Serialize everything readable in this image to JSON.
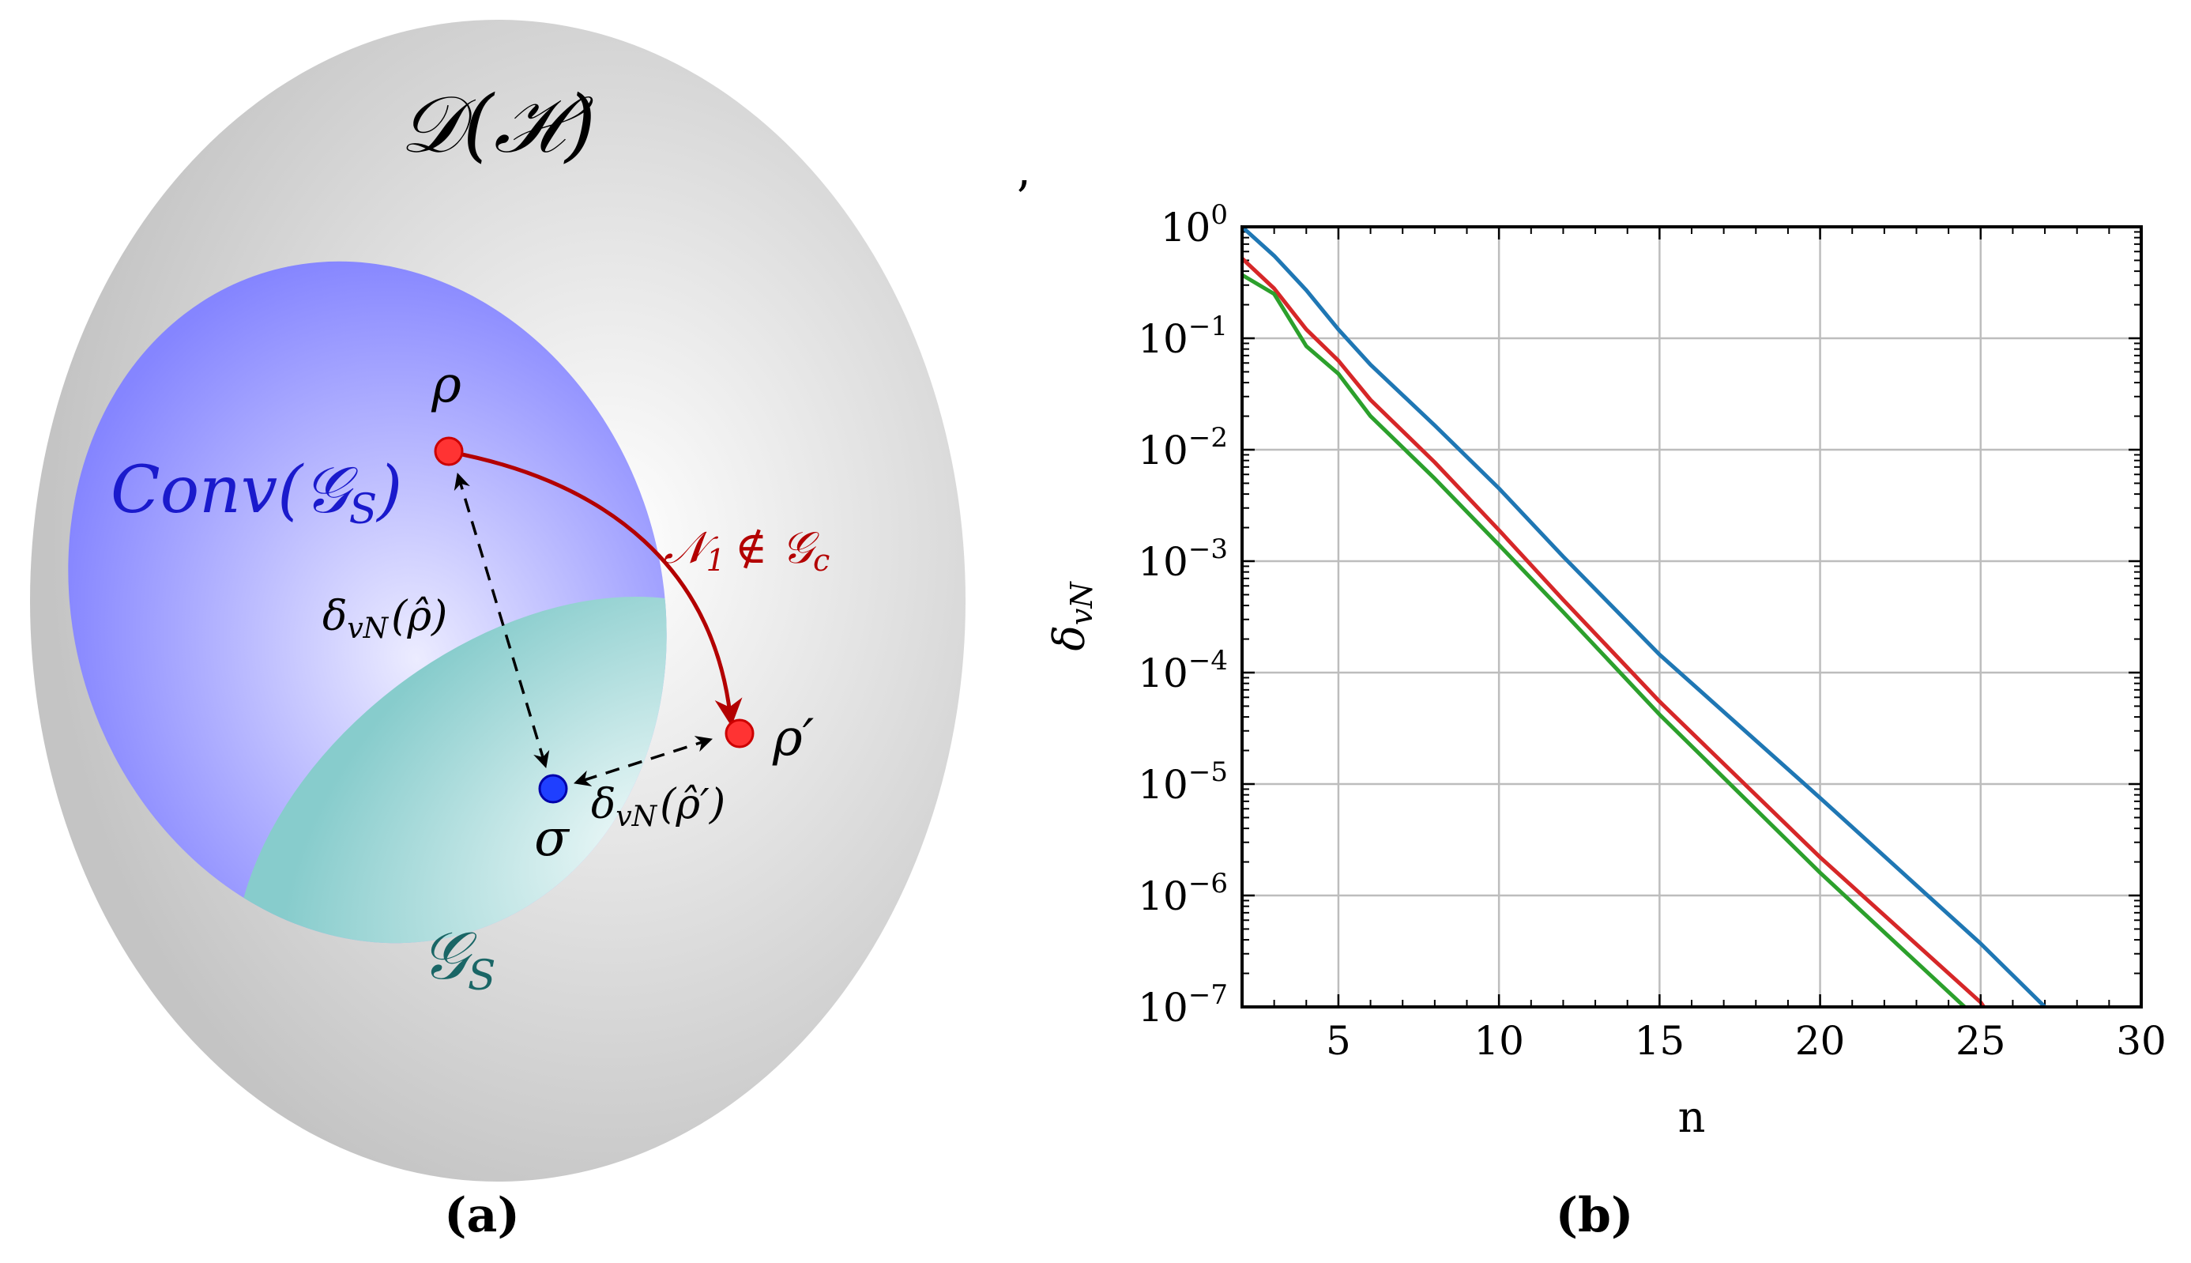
{
  "panel_a": {
    "outer_set": "𝒟(ℋ)",
    "conv_set": "Conv(𝒢",
    "conv_sub": "S",
    "conv_close": ")",
    "gs_set": "𝒢",
    "gs_sub": "S",
    "rho": "ρ",
    "rho_prime": "ρ′",
    "sigma": "σ",
    "channel_label": "𝒩",
    "channel_sub": "1",
    "channel_rest": "∉ 𝒢",
    "channel_rest_sub": "c",
    "dist1_pre": "δ",
    "dist1_sub": "vN",
    "dist1_post": "(ρ̂)",
    "dist2_pre": "δ",
    "dist2_sub": "vN",
    "dist2_post": "(ρ̂′)",
    "caption": "(a)",
    "colors": {
      "outer": "#cfcfcf",
      "conv": "#8c8cff",
      "gs": "#8ccfcf",
      "point_red": "#ff3333",
      "point_blue": "#1f3fff",
      "arrow_red": "#b30000",
      "conv_text": "#1a1acc",
      "gs_text": "#1a6666"
    }
  },
  "panel_b": {
    "caption": "(b)",
    "stray_mark": "’"
  },
  "chart_data": {
    "type": "line",
    "title": "",
    "xlabel": "n",
    "ylabel_base": "δ",
    "ylabel_sub": "vN",
    "yscale": "log",
    "xlim": [
      2,
      30
    ],
    "ylim_exp": [
      -7,
      0
    ],
    "x_ticks": [
      5,
      10,
      15,
      20,
      25,
      30
    ],
    "x_tick_labels": [
      "5",
      "10",
      "15",
      "20",
      "25",
      "30"
    ],
    "y_tick_exps": [
      0,
      -1,
      -2,
      -3,
      -4,
      -5,
      -6,
      -7
    ],
    "y_tick_labels": [
      "10",
      "10",
      "10",
      "10",
      "10",
      "10",
      "10",
      "10"
    ],
    "y_tick_sup": [
      "0",
      "−1",
      "−2",
      "−3",
      "−4",
      "−5",
      "−6",
      "−7"
    ],
    "grid": true,
    "series": [
      {
        "name": "blue",
        "color": "#1f77b4",
        "points": [
          [
            2,
            1.0
          ],
          [
            3,
            0.55
          ],
          [
            4,
            0.27
          ],
          [
            5,
            0.12
          ],
          [
            6,
            0.058
          ],
          [
            8,
            0.0165
          ],
          [
            10,
            0.0045
          ],
          [
            12,
            0.0011
          ],
          [
            15,
            0.000145
          ],
          [
            20,
            7.5e-06
          ],
          [
            25,
            3.7e-07
          ],
          [
            27,
            1e-07
          ]
        ]
      },
      {
        "name": "red",
        "color": "#d62728",
        "points": [
          [
            2,
            0.52
          ],
          [
            3,
            0.28
          ],
          [
            4,
            0.12
          ],
          [
            5,
            0.063
          ],
          [
            6,
            0.028
          ],
          [
            8,
            0.0077
          ],
          [
            10,
            0.0019
          ],
          [
            12,
            0.00045
          ],
          [
            15,
            5.5e-05
          ],
          [
            20,
            2.2e-06
          ],
          [
            25,
            1.1e-07
          ],
          [
            25.1,
            1e-07
          ]
        ]
      },
      {
        "name": "green",
        "color": "#2ca02c",
        "points": [
          [
            2,
            0.37
          ],
          [
            3,
            0.25
          ],
          [
            4,
            0.085
          ],
          [
            5,
            0.048
          ],
          [
            6,
            0.02
          ],
          [
            7,
            0.0105
          ],
          [
            8,
            0.0055
          ],
          [
            10,
            0.0014
          ],
          [
            12,
            0.00035
          ],
          [
            15,
            4.2e-05
          ],
          [
            20,
            1.6e-06
          ],
          [
            24.5,
            1e-07
          ]
        ]
      }
    ]
  }
}
